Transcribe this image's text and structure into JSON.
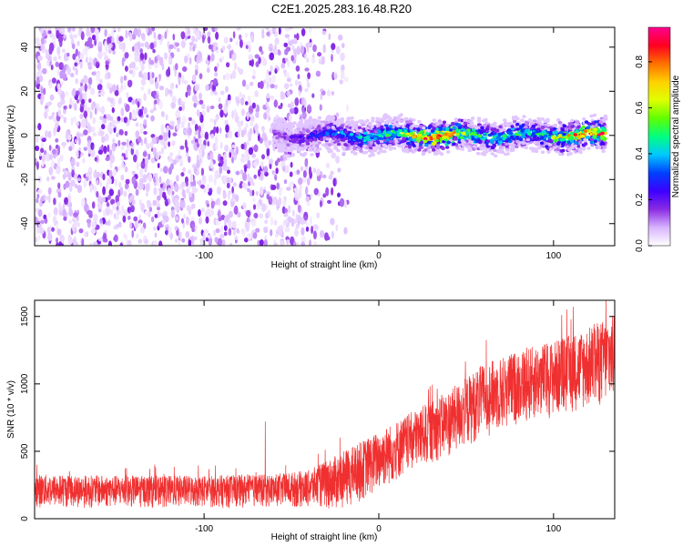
{
  "title": "C2E1.2025.283.16.48.R20",
  "chart_data": [
    {
      "type": "heatmap",
      "title": "",
      "xlabel": "Height of straight line (km)",
      "ylabel": "Frequency (Hz)",
      "xlim": [
        -197,
        135
      ],
      "ylim": [
        -50,
        49
      ],
      "xticks": [
        -100,
        0,
        100
      ],
      "xtick_labels": [
        "-100",
        "0",
        "100"
      ],
      "yticks": [
        -40,
        -20,
        0,
        20,
        40
      ],
      "ytick_labels": [
        "-40",
        "-20",
        "0",
        "20",
        "40"
      ],
      "description_note": "Noisy broadband purple speckle below ~-20 km; narrow line centered at 0 Hz above ~-60 km with amplitude rising to ~0.9 near 20-40 km and 100-130 km",
      "ridge": {
        "x": [
          -60,
          -40,
          -30,
          -20,
          -10,
          0,
          10,
          20,
          30,
          40,
          50,
          60,
          70,
          80,
          90,
          100,
          110,
          120,
          130
        ],
        "freq_center": [
          0,
          0,
          0,
          0,
          0,
          0,
          0,
          0,
          0,
          0,
          0,
          0,
          0,
          0,
          0,
          0,
          0,
          0,
          0
        ],
        "amplitude": [
          0.15,
          0.25,
          0.35,
          0.4,
          0.45,
          0.5,
          0.55,
          0.75,
          0.9,
          0.85,
          0.6,
          0.55,
          0.5,
          0.55,
          0.5,
          0.6,
          0.8,
          0.9,
          0.85
        ]
      },
      "colorbar": {
        "label": "Normalized spectral amplitude",
        "range": [
          0.0,
          0.95
        ],
        "ticks": [
          0.0,
          0.2,
          0.4,
          0.6,
          0.8
        ],
        "tick_labels": [
          "0.0",
          "0.2",
          "0.4",
          "0.6",
          "0.8"
        ],
        "colors": [
          "#ffffff",
          "#d8b4ff",
          "#8a2be2",
          "#3c00ff",
          "#0040ff",
          "#00c8ff",
          "#00ff80",
          "#60ff00",
          "#e0ff00",
          "#ffd000",
          "#ff7000",
          "#ff0020",
          "#ff0090"
        ]
      }
    },
    {
      "type": "line",
      "title": "",
      "xlabel": "Height of straight line (km)",
      "ylabel": "SNR (10 * v/v)",
      "xlim": [
        -197,
        135
      ],
      "ylim": [
        0,
        1620
      ],
      "xticks": [
        -100,
        0,
        100
      ],
      "xtick_labels": [
        "-100",
        "0",
        "100"
      ],
      "yticks": [
        0,
        500,
        1000,
        1500
      ],
      "ytick_labels": [
        "0",
        "500",
        "1000",
        "1500"
      ],
      "series": [
        {
          "name": "SNR",
          "color": "#f03030",
          "envelope_x": [
            -197,
            -150,
            -100,
            -60,
            -40,
            -20,
            0,
            20,
            40,
            60,
            80,
            100,
            120,
            135
          ],
          "lower": [
            80,
            80,
            80,
            80,
            80,
            60,
            200,
            350,
            450,
            600,
            700,
            750,
            800,
            850
          ],
          "upper": [
            330,
            320,
            320,
            330,
            360,
            500,
            650,
            800,
            950,
            1150,
            1250,
            1320,
            1420,
            1520
          ],
          "peak_x": [
            -65,
            130
          ],
          "peak_y": [
            720,
            1620
          ]
        }
      ]
    }
  ]
}
